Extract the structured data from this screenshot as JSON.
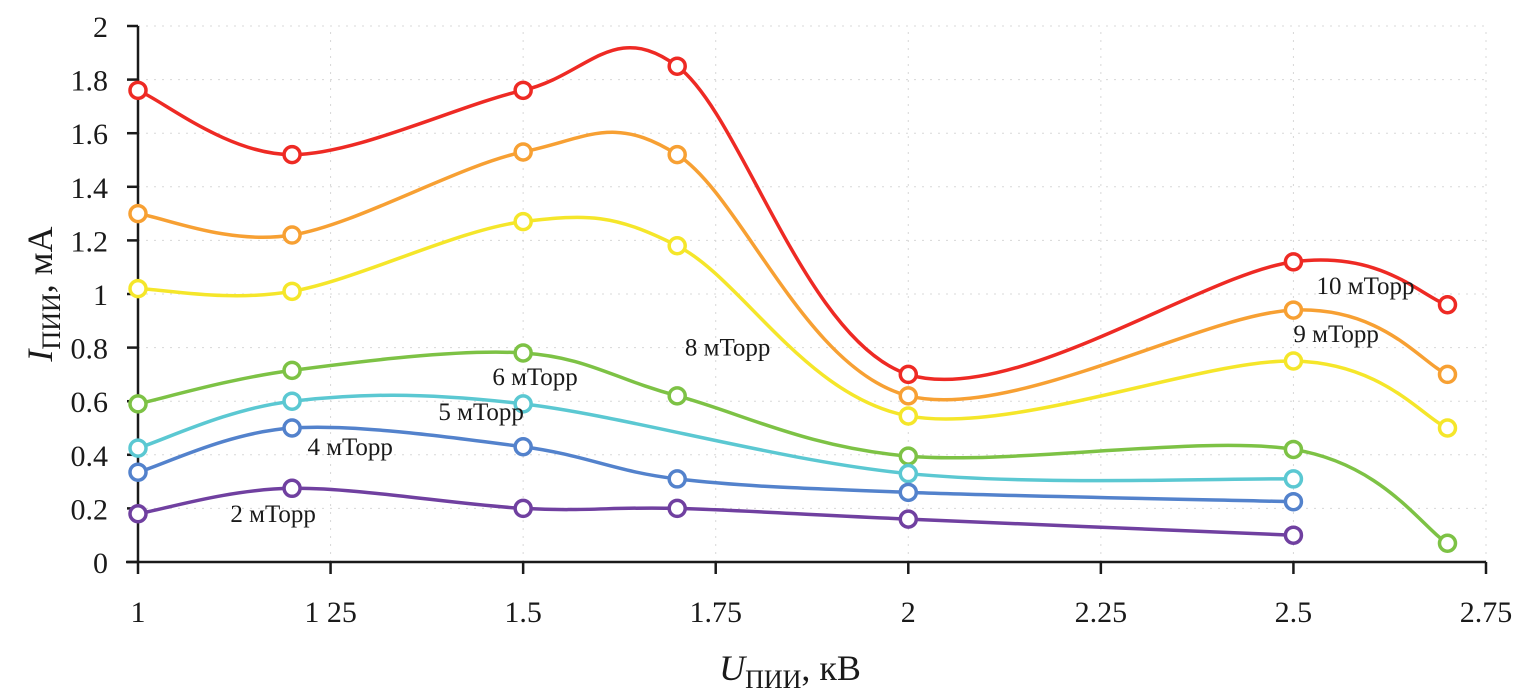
{
  "chart_data": {
    "type": "line",
    "title": "",
    "xlabel": {
      "main": "U",
      "sub": "ПИИ",
      "unit": ", кВ"
    },
    "ylabel": {
      "main": "I",
      "sub": "ПИИ",
      "unit": ", мА"
    },
    "xlim": [
      1,
      2.75
    ],
    "ylim": [
      0,
      2
    ],
    "x_ticks": [
      1,
      1.25,
      1.5,
      1.75,
      2,
      2.25,
      2.5,
      2.75
    ],
    "x_tick_labels": [
      "1",
      "1 25",
      "1.5",
      "1.75",
      "2",
      "2.25",
      "2.5",
      "2.75"
    ],
    "y_ticks": [
      0,
      0.2,
      0.4,
      0.6,
      0.8,
      1,
      1.2,
      1.4,
      1.6,
      1.8,
      2
    ],
    "y_tick_labels": [
      "0",
      "0.2",
      "0.4",
      "0.6",
      "0.8",
      "1",
      "1.2",
      "1.4",
      "1.6",
      "1.8",
      "2"
    ],
    "grid": true,
    "legend": "inline labels",
    "smooth": true,
    "marker": "open-circle",
    "series": [
      {
        "name": "10 мТорр",
        "color": "#EE2A24",
        "x": [
          1,
          1.2,
          1.5,
          1.7,
          2,
          2.5,
          2.7
        ],
        "y": [
          1.76,
          1.52,
          1.76,
          1.85,
          0.7,
          1.12,
          0.96
        ],
        "label_anchor": [
          2.53,
          1.0
        ]
      },
      {
        "name": "9 мТорр",
        "color": "#F7A033",
        "x": [
          1,
          1.2,
          1.5,
          1.7,
          2,
          2.5,
          2.7
        ],
        "y": [
          1.3,
          1.22,
          1.53,
          1.52,
          0.62,
          0.94,
          0.7
        ],
        "label_anchor": [
          2.5,
          0.82
        ]
      },
      {
        "name": "8 мТорр",
        "color": "#F5E62A",
        "x": [
          1,
          1.2,
          1.5,
          1.7,
          2,
          2.5,
          2.7
        ],
        "y": [
          1.02,
          1.01,
          1.27,
          1.18,
          0.545,
          0.75,
          0.5
        ],
        "label_anchor": [
          1.71,
          0.77
        ]
      },
      {
        "name": "6 мТорр",
        "color": "#7DC245",
        "x": [
          1,
          1.2,
          1.5,
          1.7,
          2,
          2.5,
          2.7
        ],
        "y": [
          0.59,
          0.715,
          0.78,
          0.62,
          0.395,
          0.42,
          0.07
        ],
        "label_anchor": [
          1.46,
          0.66
        ]
      },
      {
        "name": "5 мТорр",
        "color": "#5BC8D2",
        "x": [
          1,
          1.2,
          1.5,
          2,
          2.5
        ],
        "y": [
          0.425,
          0.6,
          0.59,
          0.33,
          0.31
        ],
        "label_anchor": [
          1.39,
          0.53
        ]
      },
      {
        "name": "4 мТорр",
        "color": "#5382CC",
        "x": [
          1,
          1.2,
          1.5,
          1.7,
          2,
          2.5
        ],
        "y": [
          0.335,
          0.5,
          0.43,
          0.31,
          0.26,
          0.225
        ],
        "label_anchor": [
          1.22,
          0.4
        ]
      },
      {
        "name": "2 мТорр",
        "color": "#7040A0",
        "x": [
          1,
          1.2,
          1.5,
          1.7,
          2,
          2.5
        ],
        "y": [
          0.18,
          0.275,
          0.2,
          0.2,
          0.16,
          0.1
        ],
        "label_anchor": [
          1.12,
          0.15
        ]
      }
    ]
  }
}
